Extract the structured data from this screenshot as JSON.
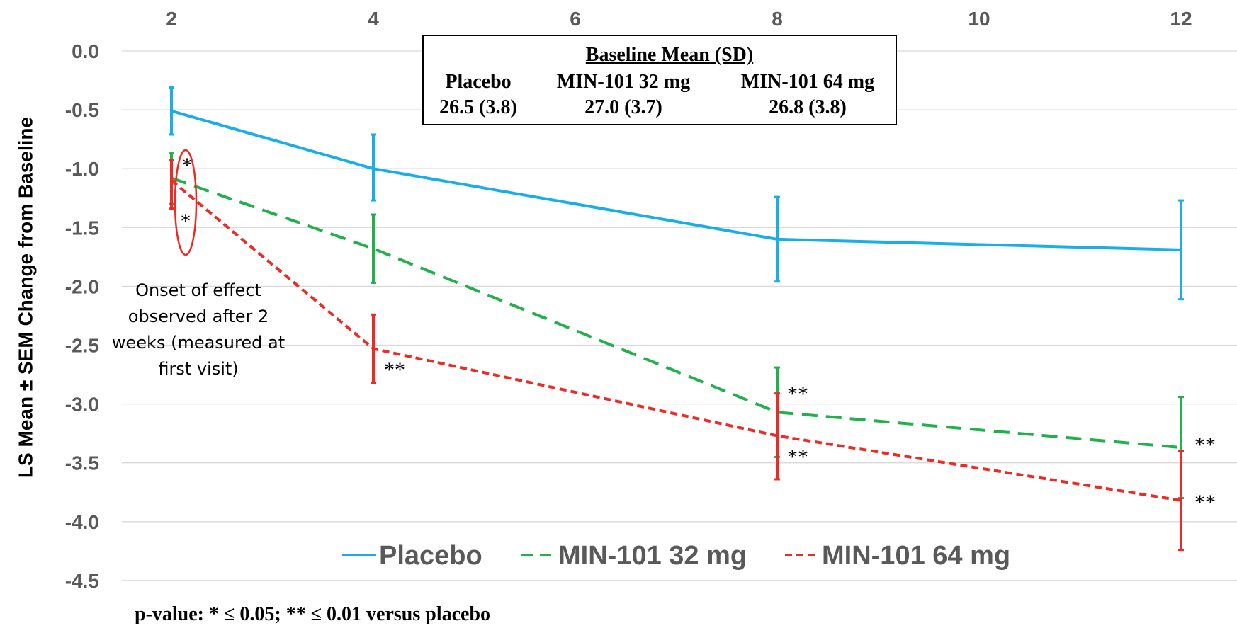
{
  "chart_data": {
    "type": "line",
    "x": [
      2,
      4,
      8,
      12
    ],
    "x_ticks": [
      "2",
      "4",
      "6",
      "8",
      "10",
      "12"
    ],
    "x_tick_values": [
      2,
      4,
      6,
      8,
      10,
      12
    ],
    "xlim": [
      1.5,
      12.5
    ],
    "ylim": [
      -4.5,
      0.0
    ],
    "y_ticks": [
      "0.0",
      "-0.5",
      "-1.0",
      "-1.5",
      "-2.0",
      "-2.5",
      "-3.0",
      "-3.5",
      "-4.0",
      "-4.5"
    ],
    "y_tick_values": [
      0.0,
      -0.5,
      -1.0,
      -1.5,
      -2.0,
      -2.5,
      -3.0,
      -3.5,
      -4.0,
      -4.5
    ],
    "ylabel": "LS Mean ± SEM Change from Baseline",
    "xlabel": "",
    "grid": "horizontal",
    "x_axis_position": "top",
    "legend_position": "bottom",
    "series": [
      {
        "name": "Placebo",
        "color": "#1AAEE8",
        "dash": "solid",
        "values": [
          -0.51,
          -1.0,
          -1.6,
          -1.69
        ],
        "err_low": [
          -0.71,
          -1.27,
          -1.96,
          -2.11
        ],
        "err_high": [
          -0.31,
          -0.71,
          -1.24,
          -1.27
        ],
        "sig": [
          "",
          "",
          "",
          ""
        ]
      },
      {
        "name": "MIN-101 32 mg",
        "color": "#22B04C",
        "dash": "long",
        "values": [
          -1.08,
          -1.68,
          -3.07,
          -3.37
        ],
        "err_low": [
          -1.3,
          -1.97,
          -3.45,
          -3.8
        ],
        "err_high": [
          -0.87,
          -1.39,
          -2.69,
          -2.94
        ],
        "sig": [
          "*",
          "",
          "**",
          "**"
        ]
      },
      {
        "name": "MIN-101 64 mg",
        "color": "#EE2A24",
        "dash": "short",
        "values": [
          -1.1,
          -2.53,
          -3.27,
          -3.82
        ],
        "err_low": [
          -1.34,
          -2.82,
          -3.64,
          -4.24
        ],
        "err_high": [
          -0.93,
          -2.24,
          -2.91,
          -3.4
        ],
        "sig": [
          "*",
          "**",
          "**",
          "**"
        ]
      }
    ],
    "annotation": {
      "lines": [
        "Onset of effect",
        "observed after 2",
        "weeks (measured at",
        "first visit)"
      ]
    },
    "baseline_box": {
      "title": "Baseline Mean (SD)",
      "headers": [
        "Placebo",
        "MIN-101 32 mg",
        "MIN-101 64 mg"
      ],
      "values": [
        "26.5 (3.8)",
        "27.0 (3.7)",
        "26.8 (3.8)"
      ]
    },
    "footnote": "p-value: * ≤ 0.05;  ** ≤ 0.01 versus placebo"
  }
}
